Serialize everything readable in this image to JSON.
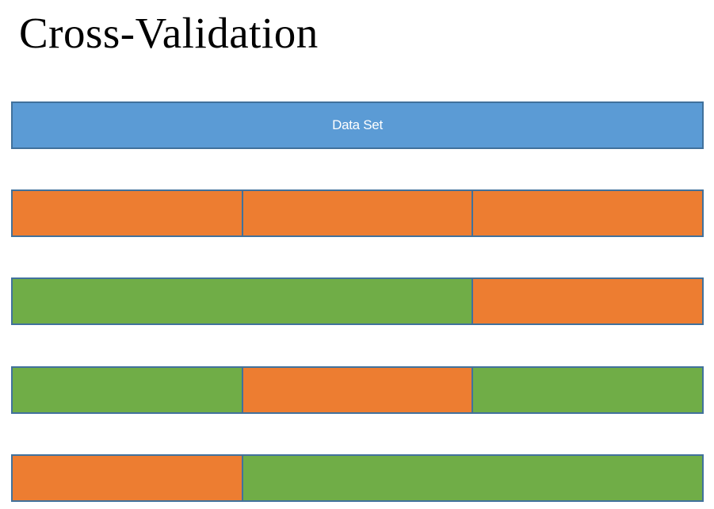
{
  "title": "Cross-Validation",
  "dataset_label": "Data Set",
  "colors": {
    "dataset": "#5b9bd5",
    "validation": "#ed7d31",
    "training": "#70ad47",
    "border": "#41719c",
    "title_text": "#000000",
    "label_text": "#ffffff"
  },
  "rows": [
    {
      "segments": [
        {
          "role": "validation",
          "span": 1
        },
        {
          "role": "validation",
          "span": 1
        },
        {
          "role": "validation",
          "span": 1
        }
      ]
    },
    {
      "segments": [
        {
          "role": "training",
          "span": 2
        },
        {
          "role": "validation",
          "span": 1
        }
      ]
    },
    {
      "segments": [
        {
          "role": "training",
          "span": 1
        },
        {
          "role": "validation",
          "span": 1
        },
        {
          "role": "training",
          "span": 1
        }
      ]
    },
    {
      "segments": [
        {
          "role": "validation",
          "span": 1
        },
        {
          "role": "training",
          "span": 2
        }
      ]
    }
  ]
}
